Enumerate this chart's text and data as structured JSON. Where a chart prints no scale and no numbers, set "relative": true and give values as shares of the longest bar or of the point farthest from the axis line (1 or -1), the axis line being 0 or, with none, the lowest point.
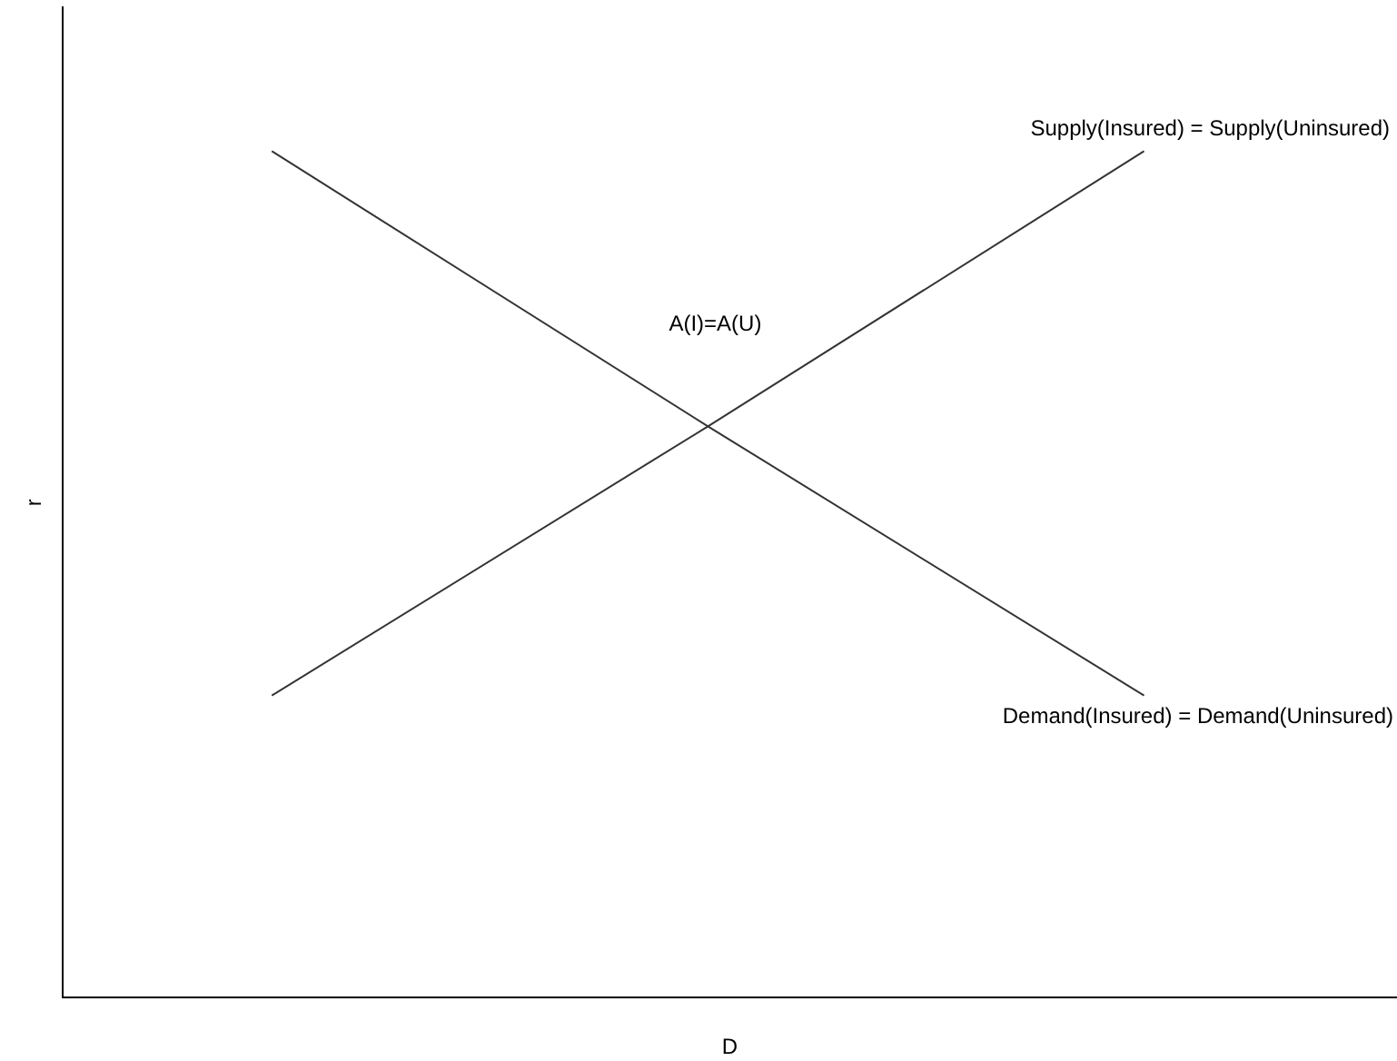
{
  "chart_data": {
    "type": "line",
    "relative": true,
    "xlabel": "D",
    "ylabel": "r",
    "categories": [
      null,
      null,
      null
    ],
    "series": [
      {
        "name": "Supply(Insured) = Supply(Uninsured)",
        "color": "#333333",
        "values": [
          0.357,
          0.675,
          1
        ]
      },
      {
        "name": "Demand(Insured) = Demand(Uninsured)",
        "color": "#333333",
        "values": [
          1,
          0.675,
          0.357
        ]
      }
    ],
    "annotations": [
      "A(I)=A(U)"
    ],
    "legend": false,
    "grid": false,
    "marker": "none",
    "line_style": "solid"
  }
}
